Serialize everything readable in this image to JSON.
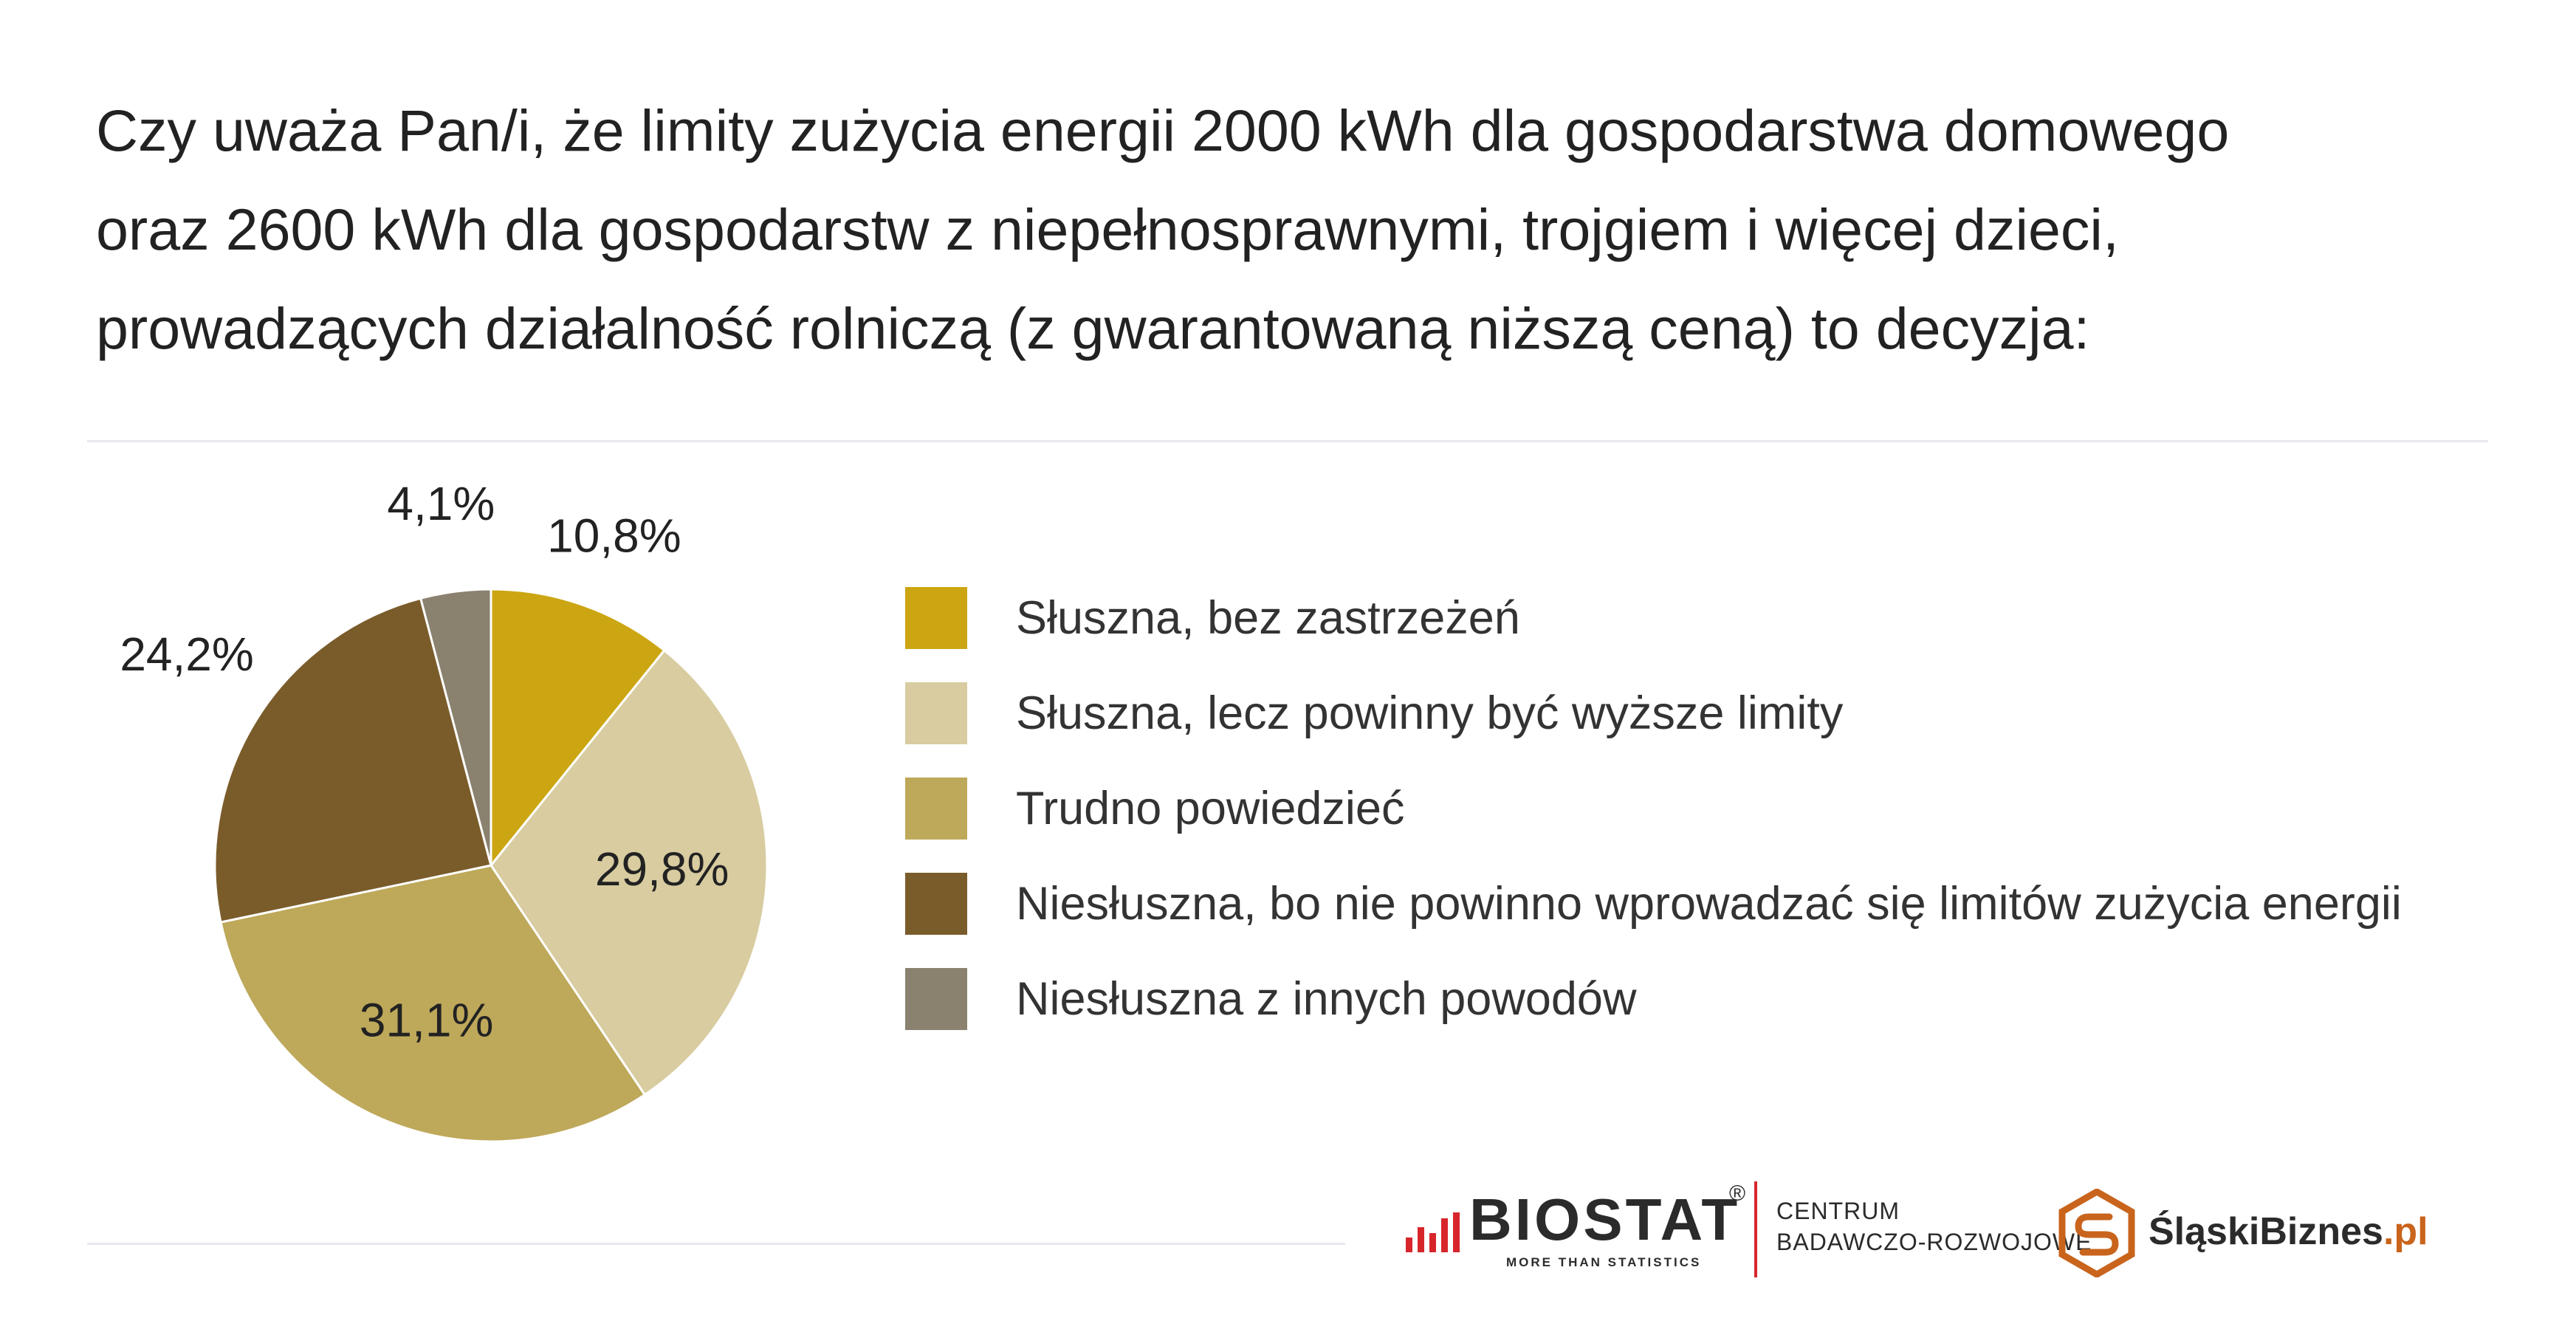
{
  "title": {
    "line1": "Czy uważa Pan/i, że limity zużycia energii 2000 kWh dla gospodarstwa domowego",
    "line2": "oraz 2600 kWh dla gospodarstw z niepełnosprawnymi, trojgiem i więcej dzieci,",
    "line3": "prowadzących działalność rolniczą (z gwarantowaną niższą ceną) to decyzja:"
  },
  "chart_data": {
    "type": "pie",
    "categories": [
      "Słuszna, bez zastrzeżeń",
      "Słuszna, lecz powinny być wyższe limity",
      "Trudno powiedzieć",
      "Niesłuszna, bo nie powinno wprowadzać się limitów zużycia energii",
      "Niesłuszna z innych powodów"
    ],
    "values": [
      10.8,
      29.8,
      31.1,
      24.2,
      4.1
    ],
    "value_labels": [
      "10,8%",
      "29,8%",
      "31,1%",
      "24,2%",
      "4,1%"
    ],
    "colors": [
      "#cca612",
      "#d8cca0",
      "#bea85a",
      "#7a5c2b",
      "#8a826f"
    ],
    "start_angle": "12 o'clock",
    "direction": "clockwise",
    "legend_position": "right"
  },
  "footer": {
    "biostat": {
      "name": "BIOSTAT",
      "registered": "®",
      "tagline": "MORE THAN STATISTICS",
      "centrum_line1": "CENTRUM",
      "centrum_line2": "BADAWCZO-ROZWOJOWE",
      "accent_color": "#d7262b"
    },
    "slaski": {
      "name": "ŚląskiBiznes",
      "domain": ".pl",
      "accent_color": "#c9641c"
    }
  }
}
